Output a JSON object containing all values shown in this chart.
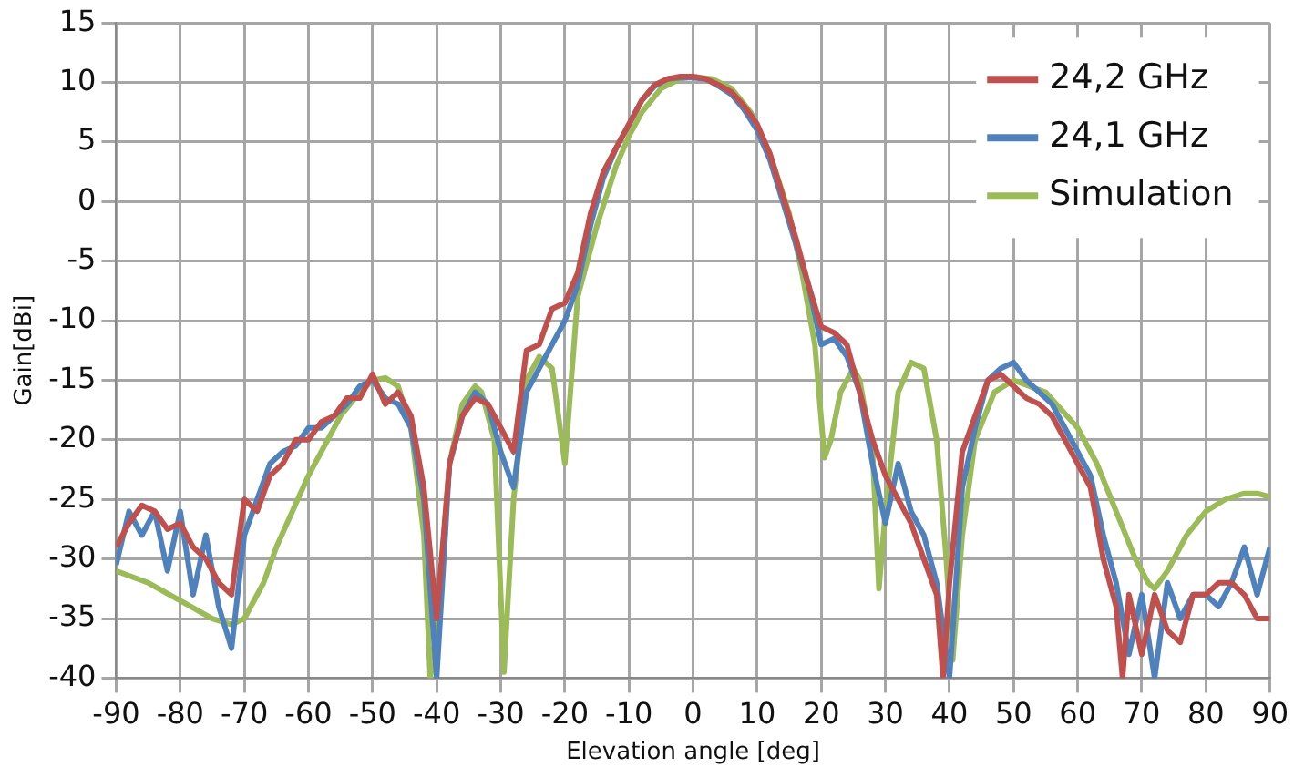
{
  "chart_data": {
    "type": "line",
    "xlabel": "Elevation angle [deg]",
    "ylabel": "Gain[dBi]",
    "xlim": [
      -90,
      90
    ],
    "ylim": [
      -40,
      15
    ],
    "xticks": [
      -90,
      -80,
      -70,
      -60,
      -50,
      -40,
      -30,
      -20,
      -10,
      0,
      10,
      20,
      30,
      40,
      50,
      60,
      70,
      80,
      90
    ],
    "yticks": [
      -40,
      -35,
      -30,
      -25,
      -20,
      -15,
      -10,
      -5,
      0,
      5,
      10,
      15
    ],
    "grid": true,
    "legend": "top right",
    "marker": "none",
    "line_style": "solid",
    "series": [
      {
        "name": "24,2 GHz",
        "color": "#c0504d",
        "x": [
          -90,
          -88,
          -86,
          -84,
          -82,
          -80,
          -78,
          -76,
          -74,
          -72,
          -70,
          -68,
          -66,
          -64,
          -62,
          -60,
          -58,
          -56,
          -54,
          -52,
          -50,
          -48,
          -46,
          -44,
          -42,
          -40,
          -38,
          -36,
          -34,
          -32,
          -30,
          -28,
          -26,
          -24,
          -22,
          -20,
          -18,
          -16,
          -14,
          -12,
          -10,
          -8,
          -6,
          -4,
          -2,
          0,
          2,
          4,
          6,
          8,
          10,
          12,
          14,
          16,
          18,
          20,
          22,
          24,
          26,
          28,
          30,
          32,
          34,
          36,
          38,
          39,
          40,
          42,
          44,
          46,
          48,
          50,
          52,
          54,
          56,
          58,
          60,
          62,
          64,
          66,
          67,
          68,
          70,
          72,
          74,
          76,
          78,
          80,
          82,
          84,
          86,
          88,
          90
        ],
        "values": [
          -29,
          -27,
          -25.5,
          -26,
          -27.5,
          -27,
          -29,
          -30,
          -32,
          -33,
          -25,
          -26,
          -23,
          -22,
          -20,
          -20,
          -18.5,
          -18,
          -16.5,
          -16.5,
          -14.5,
          -17,
          -16,
          -18,
          -24,
          -35,
          -22,
          -18,
          -16.5,
          -17,
          -19,
          -21,
          -12.5,
          -12,
          -9,
          -8.5,
          -6,
          -1,
          2.5,
          4.5,
          6.5,
          8.5,
          9.8,
          10.3,
          10.5,
          10.5,
          10.3,
          9.8,
          9.2,
          8,
          6.5,
          4,
          0.5,
          -3,
          -7,
          -10.5,
          -11,
          -12,
          -16,
          -20,
          -23,
          -25,
          -27,
          -30,
          -33,
          -40,
          -32,
          -21,
          -18,
          -15,
          -14.5,
          -15.5,
          -16.5,
          -17,
          -18,
          -20,
          -22,
          -24,
          -30,
          -34,
          -40,
          -33,
          -38,
          -33,
          -36,
          -37,
          -33,
          -33,
          -32,
          -32,
          -33,
          -35,
          -35
        ]
      },
      {
        "name": "24,1 GHz",
        "color": "#4f81bd",
        "x": [
          -90,
          -88,
          -86,
          -84,
          -82,
          -80,
          -78,
          -76,
          -74,
          -72,
          -70,
          -68,
          -66,
          -64,
          -62,
          -60,
          -58,
          -56,
          -54,
          -52,
          -50,
          -48,
          -46,
          -44,
          -42,
          -40,
          -38,
          -36,
          -34,
          -32,
          -30,
          -28,
          -26,
          -24,
          -22,
          -20,
          -18,
          -16,
          -14,
          -12,
          -10,
          -8,
          -6,
          -4,
          -2,
          0,
          2,
          4,
          6,
          8,
          10,
          12,
          14,
          16,
          18,
          20,
          22,
          24,
          26,
          28,
          30,
          32,
          34,
          36,
          38,
          40,
          42,
          44,
          46,
          48,
          50,
          52,
          54,
          56,
          58,
          60,
          62,
          64,
          66,
          68,
          70,
          72,
          74,
          76,
          78,
          80,
          82,
          84,
          86,
          88,
          90
        ],
        "values": [
          -30.5,
          -26,
          -28,
          -26,
          -31,
          -26,
          -33,
          -28,
          -34,
          -37.5,
          -28,
          -25,
          -22,
          -21,
          -20.5,
          -19,
          -19,
          -18,
          -17,
          -15.5,
          -15,
          -16.5,
          -17,
          -19,
          -25,
          -40,
          -22,
          -18,
          -16,
          -17,
          -21,
          -24,
          -16,
          -14,
          -12,
          -10,
          -7,
          -2,
          2,
          4.5,
          6.5,
          8.5,
          9.7,
          10.3,
          10.4,
          10.4,
          10.3,
          9.7,
          9,
          7.7,
          6,
          3.5,
          0,
          -3.5,
          -7,
          -12,
          -11.5,
          -13,
          -16,
          -22,
          -27,
          -22,
          -26,
          -28,
          -32,
          -40,
          -24,
          -19,
          -15,
          -14,
          -13.5,
          -15,
          -16,
          -17,
          -19,
          -21,
          -23,
          -28,
          -32,
          -38,
          -33,
          -40,
          -32,
          -35,
          -33,
          -33,
          -34,
          -32,
          -29,
          -33,
          -29
        ]
      },
      {
        "name": "Simulation",
        "color": "#9bbb59",
        "x": [
          -90,
          -85,
          -80,
          -75,
          -72,
          -70,
          -67,
          -65,
          -60,
          -55,
          -52,
          -50,
          -48,
          -46,
          -44,
          -42,
          -41,
          -40,
          -38,
          -36,
          -34,
          -33,
          -31,
          -29.5,
          -28,
          -26,
          -24,
          -22,
          -21,
          -20,
          -19,
          -18,
          -15,
          -12,
          -10,
          -8,
          -5,
          -2,
          0,
          3,
          6,
          9,
          12,
          15,
          17,
          19,
          20.5,
          21.5,
          23,
          25,
          26,
          28,
          29,
          30,
          32,
          34,
          36,
          38,
          39.5,
          40.5,
          42,
          44,
          47,
          50,
          55,
          60,
          63,
          66,
          69,
          71,
          72,
          74,
          77,
          80,
          83,
          86,
          88,
          90
        ],
        "values": [
          -31,
          -32,
          -33.5,
          -35,
          -35.5,
          -35,
          -32,
          -29,
          -23,
          -18,
          -16,
          -15,
          -14.8,
          -15.5,
          -19,
          -28,
          -40,
          -36,
          -22,
          -17,
          -15.5,
          -16,
          -20,
          -39.5,
          -25,
          -15,
          -13,
          -14,
          -18,
          -22,
          -15,
          -8,
          -2,
          3,
          5.5,
          7.5,
          9.5,
          10.3,
          10.5,
          10.3,
          9.5,
          7.5,
          4,
          -1,
          -6,
          -12,
          -21.5,
          -20,
          -16,
          -14,
          -15,
          -21,
          -32.5,
          -26,
          -16,
          -13.5,
          -14,
          -20,
          -30,
          -38.5,
          -28,
          -20,
          -16,
          -15,
          -16,
          -19,
          -22,
          -26,
          -30,
          -32,
          -32.5,
          -31,
          -28,
          -26,
          -25,
          -24.5,
          -24.5,
          -24.8
        ]
      }
    ]
  }
}
